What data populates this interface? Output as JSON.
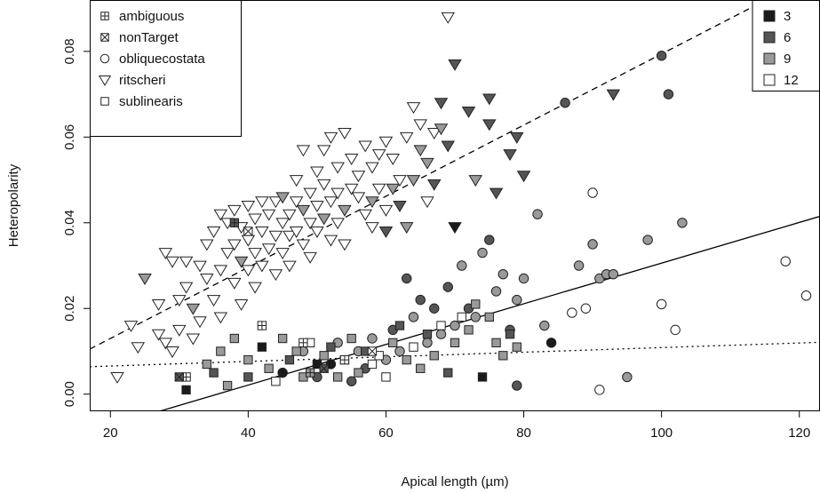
{
  "chart_data": {
    "type": "scatter",
    "xlabel": "Apical length (µm)",
    "ylabel": "Heteropolarity",
    "xlim": [
      17,
      123
    ],
    "ylim": [
      -0.004,
      0.092
    ],
    "xticks": [
      20,
      40,
      60,
      80,
      100,
      120
    ],
    "yticks": [
      0.0,
      0.02,
      0.04,
      0.06,
      0.08
    ],
    "xtick_labels": [
      "20",
      "40",
      "60",
      "80",
      "100",
      "120"
    ],
    "ytick_labels": [
      "0.00",
      "0.02",
      "0.04",
      "0.06",
      "0.08"
    ],
    "grid": false,
    "shape_legend": {
      "placement": "top-left",
      "entries": [
        {
          "label": "ambiguous",
          "marker": "square-plus"
        },
        {
          "label": "nonTarget",
          "marker": "square-x"
        },
        {
          "label": "obliquecostata",
          "marker": "circle"
        },
        {
          "label": "ritscheri",
          "marker": "triangle-down"
        },
        {
          "label": "sublinearis",
          "marker": "square"
        }
      ]
    },
    "fill_legend": {
      "placement": "top-right",
      "entries": [
        {
          "label": "3",
          "color": "#1a1a1a"
        },
        {
          "label": "6",
          "color": "#555555"
        },
        {
          "label": "9",
          "color": "#9a9a9a"
        },
        {
          "label": "12",
          "color": "#ffffff"
        }
      ]
    },
    "lines": [
      {
        "style": "dashed",
        "x": [
          17,
          123
        ],
        "y": [
          0.0105,
          0.0985
        ]
      },
      {
        "style": "solid",
        "x": [
          17,
          123
        ],
        "y": [
          -0.0088,
          0.0415
        ]
      },
      {
        "style": "dotted",
        "x": [
          17,
          123
        ],
        "y": [
          0.0064,
          0.0121
        ]
      }
    ],
    "series": [
      {
        "name": "ritscheri",
        "marker": "triangle-down",
        "points": [
          [
            21,
            0.004,
            12
          ],
          [
            23,
            0.016,
            12
          ],
          [
            24,
            0.011,
            12
          ],
          [
            25,
            0.027,
            9
          ],
          [
            27,
            0.014,
            12
          ],
          [
            27,
            0.021,
            12
          ],
          [
            28,
            0.033,
            12
          ],
          [
            28,
            0.012,
            12
          ],
          [
            29,
            0.031,
            12
          ],
          [
            29,
            0.01,
            12
          ],
          [
            30,
            0.022,
            12
          ],
          [
            30,
            0.015,
            12
          ],
          [
            31,
            0.031,
            12
          ],
          [
            31,
            0.025,
            12
          ],
          [
            32,
            0.013,
            12
          ],
          [
            32,
            0.02,
            9
          ],
          [
            33,
            0.017,
            12
          ],
          [
            33,
            0.03,
            12
          ],
          [
            34,
            0.035,
            12
          ],
          [
            34,
            0.027,
            12
          ],
          [
            35,
            0.038,
            12
          ],
          [
            35,
            0.022,
            12
          ],
          [
            36,
            0.042,
            12
          ],
          [
            36,
            0.029,
            12
          ],
          [
            36,
            0.018,
            12
          ],
          [
            37,
            0.033,
            12
          ],
          [
            37,
            0.04,
            12
          ],
          [
            38,
            0.026,
            12
          ],
          [
            38,
            0.035,
            12
          ],
          [
            38,
            0.043,
            12
          ],
          [
            39,
            0.031,
            9
          ],
          [
            39,
            0.039,
            12
          ],
          [
            39,
            0.021,
            12
          ],
          [
            40,
            0.036,
            12
          ],
          [
            40,
            0.044,
            12
          ],
          [
            40,
            0.029,
            12
          ],
          [
            41,
            0.033,
            12
          ],
          [
            41,
            0.041,
            12
          ],
          [
            41,
            0.025,
            12
          ],
          [
            42,
            0.045,
            12
          ],
          [
            42,
            0.038,
            12
          ],
          [
            42,
            0.03,
            12
          ],
          [
            43,
            0.034,
            12
          ],
          [
            43,
            0.042,
            12
          ],
          [
            44,
            0.037,
            12
          ],
          [
            44,
            0.045,
            12
          ],
          [
            44,
            0.028,
            12
          ],
          [
            45,
            0.04,
            12
          ],
          [
            45,
            0.033,
            12
          ],
          [
            45,
            0.046,
            9
          ],
          [
            46,
            0.037,
            12
          ],
          [
            46,
            0.042,
            12
          ],
          [
            46,
            0.03,
            12
          ],
          [
            47,
            0.05,
            12
          ],
          [
            47,
            0.038,
            12
          ],
          [
            47,
            0.045,
            12
          ],
          [
            48,
            0.035,
            12
          ],
          [
            48,
            0.043,
            9
          ],
          [
            48,
            0.057,
            12
          ],
          [
            49,
            0.04,
            12
          ],
          [
            49,
            0.047,
            12
          ],
          [
            49,
            0.032,
            12
          ],
          [
            50,
            0.052,
            12
          ],
          [
            50,
            0.044,
            12
          ],
          [
            50,
            0.038,
            12
          ],
          [
            51,
            0.057,
            12
          ],
          [
            51,
            0.049,
            12
          ],
          [
            51,
            0.041,
            9
          ],
          [
            52,
            0.06,
            12
          ],
          [
            52,
            0.045,
            12
          ],
          [
            52,
            0.036,
            12
          ],
          [
            53,
            0.053,
            12
          ],
          [
            53,
            0.04,
            12
          ],
          [
            53,
            0.047,
            12
          ],
          [
            54,
            0.061,
            12
          ],
          [
            54,
            0.043,
            9
          ],
          [
            54,
            0.035,
            12
          ],
          [
            55,
            0.055,
            12
          ],
          [
            55,
            0.048,
            12
          ],
          [
            56,
            0.046,
            12
          ],
          [
            56,
            0.051,
            12
          ],
          [
            57,
            0.058,
            12
          ],
          [
            57,
            0.042,
            12
          ],
          [
            58,
            0.053,
            12
          ],
          [
            58,
            0.045,
            9
          ],
          [
            58,
            0.039,
            12
          ],
          [
            59,
            0.056,
            12
          ],
          [
            59,
            0.048,
            12
          ],
          [
            60,
            0.059,
            12
          ],
          [
            60,
            0.043,
            12
          ],
          [
            60,
            0.038,
            6
          ],
          [
            61,
            0.055,
            12
          ],
          [
            61,
            0.048,
            9
          ],
          [
            62,
            0.05,
            12
          ],
          [
            62,
            0.044,
            6
          ],
          [
            63,
            0.06,
            12
          ],
          [
            63,
            0.039,
            9
          ],
          [
            64,
            0.067,
            12
          ],
          [
            64,
            0.05,
            9
          ],
          [
            65,
            0.063,
            12
          ],
          [
            65,
            0.057,
            9
          ],
          [
            66,
            0.045,
            12
          ],
          [
            66,
            0.054,
            9
          ],
          [
            67,
            0.061,
            12
          ],
          [
            67,
            0.049,
            6
          ],
          [
            68,
            0.068,
            6
          ],
          [
            68,
            0.062,
            9
          ],
          [
            69,
            0.088,
            12
          ],
          [
            69,
            0.058,
            6
          ],
          [
            70,
            0.077,
            6
          ],
          [
            70,
            0.039,
            3
          ],
          [
            72,
            0.066,
            6
          ],
          [
            73,
            0.05,
            9
          ],
          [
            75,
            0.063,
            6
          ],
          [
            75,
            0.069,
            6
          ],
          [
            76,
            0.047,
            6
          ],
          [
            78,
            0.056,
            6
          ],
          [
            79,
            0.06,
            6
          ],
          [
            80,
            0.051,
            6
          ],
          [
            93,
            0.07,
            6
          ]
        ]
      },
      {
        "name": "obliquecostata",
        "marker": "circle",
        "points": [
          [
            45,
            0.005,
            3
          ],
          [
            48,
            0.01,
            9
          ],
          [
            50,
            0.004,
            6
          ],
          [
            52,
            0.007,
            3
          ],
          [
            53,
            0.012,
            9
          ],
          [
            55,
            0.003,
            6
          ],
          [
            56,
            0.01,
            9
          ],
          [
            57,
            0.006,
            6
          ],
          [
            58,
            0.013,
            9
          ],
          [
            60,
            0.008,
            9
          ],
          [
            61,
            0.015,
            6
          ],
          [
            62,
            0.01,
            9
          ],
          [
            63,
            0.027,
            6
          ],
          [
            64,
            0.018,
            9
          ],
          [
            65,
            0.022,
            6
          ],
          [
            66,
            0.012,
            9
          ],
          [
            67,
            0.02,
            6
          ],
          [
            68,
            0.014,
            9
          ],
          [
            69,
            0.025,
            6
          ],
          [
            70,
            0.016,
            9
          ],
          [
            71,
            0.03,
            9
          ],
          [
            72,
            0.02,
            6
          ],
          [
            73,
            0.018,
            9
          ],
          [
            74,
            0.033,
            9
          ],
          [
            75,
            0.036,
            6
          ],
          [
            76,
            0.024,
            9
          ],
          [
            77,
            0.028,
            9
          ],
          [
            78,
            0.015,
            6
          ],
          [
            79,
            0.022,
            9
          ],
          [
            79,
            0.002,
            6
          ],
          [
            80,
            0.027,
            9
          ],
          [
            82,
            0.042,
            9
          ],
          [
            83,
            0.016,
            9
          ],
          [
            84,
            0.012,
            3
          ],
          [
            86,
            0.068,
            6
          ],
          [
            87,
            0.019,
            12
          ],
          [
            88,
            0.03,
            9
          ],
          [
            89,
            0.02,
            12
          ],
          [
            90,
            0.047,
            12
          ],
          [
            90,
            0.035,
            9
          ],
          [
            91,
            0.027,
            9
          ],
          [
            91,
            0.001,
            12
          ],
          [
            92,
            0.028,
            9
          ],
          [
            93,
            0.028,
            9
          ],
          [
            95,
            0.004,
            9
          ],
          [
            98,
            0.036,
            9
          ],
          [
            100,
            0.079,
            6
          ],
          [
            100,
            0.021,
            12
          ],
          [
            101,
            0.07,
            6
          ],
          [
            102,
            0.015,
            12
          ],
          [
            103,
            0.04,
            9
          ],
          [
            118,
            0.031,
            12
          ],
          [
            121,
            0.023,
            12
          ]
        ]
      },
      {
        "name": "sublinearis",
        "marker": "square",
        "points": [
          [
            31,
            0.001,
            3
          ],
          [
            34,
            0.007,
            9
          ],
          [
            35,
            0.005,
            6
          ],
          [
            36,
            0.01,
            9
          ],
          [
            37,
            0.002,
            9
          ],
          [
            38,
            0.013,
            9
          ],
          [
            40,
            0.004,
            6
          ],
          [
            40,
            0.008,
            9
          ],
          [
            42,
            0.011,
            3
          ],
          [
            43,
            0.006,
            9
          ],
          [
            44,
            0.003,
            12
          ],
          [
            45,
            0.013,
            9
          ],
          [
            46,
            0.008,
            6
          ],
          [
            47,
            0.01,
            9
          ],
          [
            48,
            0.004,
            9
          ],
          [
            49,
            0.012,
            12
          ],
          [
            50,
            0.007,
            3
          ],
          [
            51,
            0.009,
            9
          ],
          [
            52,
            0.011,
            6
          ],
          [
            53,
            0.004,
            9
          ],
          [
            54,
            0.008,
            12
          ],
          [
            55,
            0.013,
            9
          ],
          [
            56,
            0.005,
            9
          ],
          [
            57,
            0.01,
            6
          ],
          [
            58,
            0.007,
            12
          ],
          [
            59,
            0.009,
            12
          ],
          [
            60,
            0.004,
            12
          ],
          [
            61,
            0.012,
            9
          ],
          [
            62,
            0.016,
            6
          ],
          [
            63,
            0.008,
            9
          ],
          [
            64,
            0.011,
            12
          ],
          [
            65,
            0.006,
            9
          ],
          [
            66,
            0.014,
            6
          ],
          [
            67,
            0.009,
            9
          ],
          [
            68,
            0.016,
            12
          ],
          [
            69,
            0.005,
            6
          ],
          [
            70,
            0.012,
            9
          ],
          [
            71,
            0.018,
            12
          ],
          [
            72,
            0.015,
            9
          ],
          [
            73,
            0.021,
            9
          ],
          [
            74,
            0.004,
            3
          ],
          [
            75,
            0.018,
            9
          ],
          [
            76,
            0.012,
            9
          ],
          [
            77,
            0.009,
            9
          ],
          [
            78,
            0.014,
            6
          ],
          [
            79,
            0.011,
            9
          ]
        ]
      },
      {
        "name": "ambiguous",
        "marker": "square-plus",
        "points": [
          [
            31,
            0.004,
            12
          ],
          [
            38,
            0.04,
            6
          ],
          [
            42,
            0.016,
            12
          ],
          [
            48,
            0.012,
            12
          ],
          [
            49,
            0.005,
            9
          ],
          [
            54,
            0.008,
            12
          ]
        ]
      },
      {
        "name": "nonTarget",
        "marker": "square-x",
        "points": [
          [
            30,
            0.004,
            6
          ],
          [
            40,
            0.038,
            12
          ],
          [
            51,
            0.006,
            6
          ],
          [
            58,
            0.01,
            12
          ]
        ]
      }
    ]
  }
}
